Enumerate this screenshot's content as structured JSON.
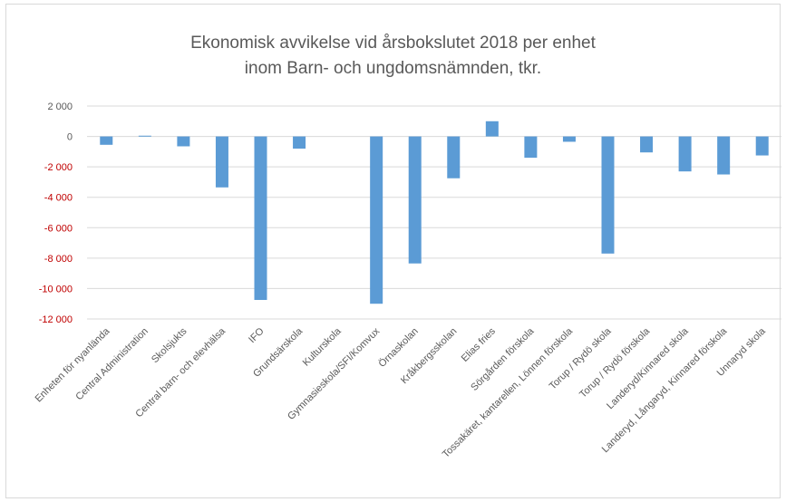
{
  "chart_data": {
    "type": "bar",
    "title": [
      "Ekonomisk avvikelse vid årsbokslutet 2018 per enhet",
      "inom Barn- och ungdomsnämnden,  tkr."
    ],
    "xlabel": "",
    "ylabel": "",
    "ylim": [
      -12000,
      2000
    ],
    "yticks": [
      2000,
      0,
      -2000,
      -4000,
      -6000,
      -8000,
      -10000,
      -12000
    ],
    "ytick_labels": [
      "2 000",
      "0",
      "-2 000",
      "-4 000",
      "-6 000",
      "-8 000",
      "-10 000",
      "-12 000"
    ],
    "negative_tick_color": "#c00000",
    "positive_tick_color": "#595959",
    "bar_color": "#5b9bd5",
    "grid": true,
    "categories": [
      "Enheten för nyanlända",
      "Central Administration",
      "Skolsjukts",
      "Central barn- och elevhälsa",
      "IFO",
      "Grundsärskola",
      "Kulturskola",
      "Gymnasieskola/SFI/Komvux",
      "Örnaskolan",
      "Kråkbergsskolan",
      "Elias fries",
      "Sörgården förskola",
      "Tossakäret, kantarellen, Lönnen förskola",
      "Torup / Rydö skola",
      "Torup / Rydö förskola",
      "Landeryd/Kinnared skola",
      "Landeryd, Långaryd, Kinnared förskola",
      "Unnaryd skola"
    ],
    "values": [
      -550,
      50,
      -650,
      -3350,
      -10750,
      -800,
      0,
      -11000,
      -8350,
      -2750,
      1000,
      -1400,
      -350,
      -7700,
      -1050,
      -2300,
      -2500,
      -1250
    ]
  }
}
